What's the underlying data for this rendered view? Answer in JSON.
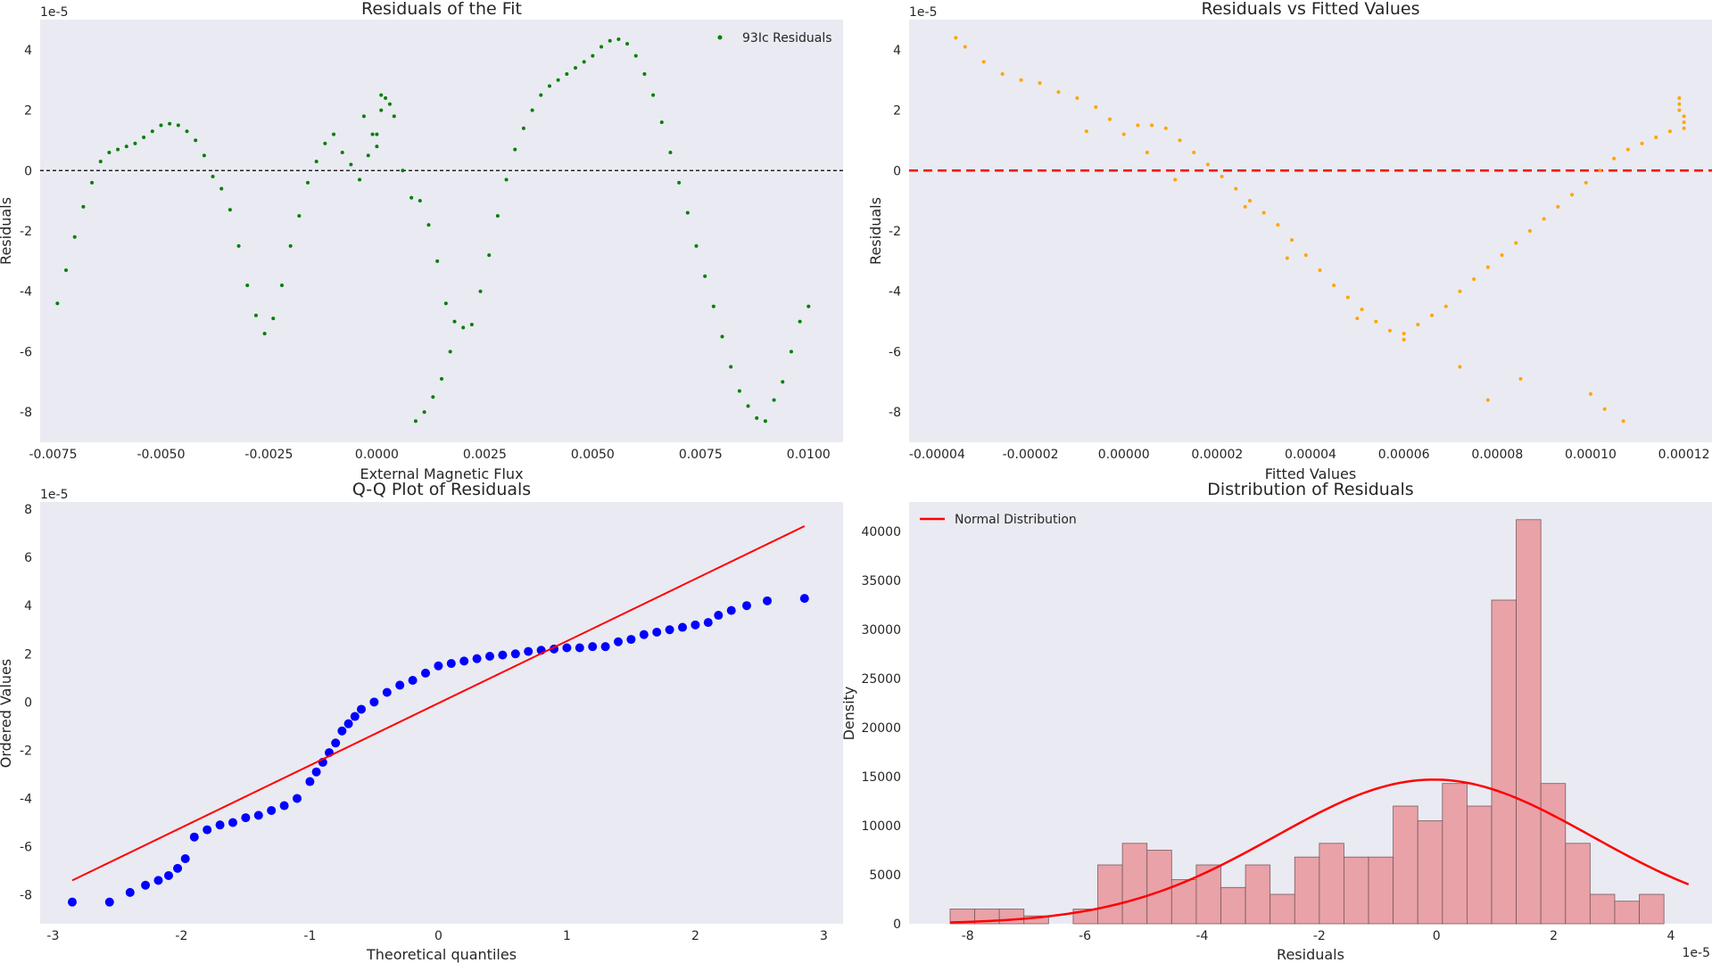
{
  "chart_data": [
    {
      "type": "scatter",
      "title": "Residuals of the Fit",
      "xlabel": "External Magnetic Flux",
      "ylabel": "Residuals",
      "offset_label": "1e-5",
      "xlim": [
        -0.0078,
        0.0108
      ],
      "ylim": [
        -9.0,
        5.0
      ],
      "xticks": [
        "-0.0075",
        "-0.0050",
        "-0.0025",
        "0.0000",
        "0.0025",
        "0.0050",
        "0.0075",
        "0.0100"
      ],
      "xtick_values": [
        -0.0075,
        -0.005,
        -0.0025,
        0,
        0.0025,
        0.005,
        0.0075,
        0.01
      ],
      "yticks": [
        "4",
        "2",
        "0",
        "-2",
        "-4",
        "-6",
        "-8"
      ],
      "ytick_values": [
        4,
        2,
        0,
        -2,
        -4,
        -6,
        -8
      ],
      "grid": false,
      "legend_position": "top-right",
      "series": [
        {
          "name": "93Ic Residuals",
          "color": "#008000",
          "x": [
            -0.0074,
            -0.0072,
            -0.007,
            -0.0068,
            -0.0066,
            -0.0064,
            -0.0062,
            -0.006,
            -0.0058,
            -0.0056,
            -0.0054,
            -0.0052,
            -0.005,
            -0.0048,
            -0.0046,
            -0.0044,
            -0.0042,
            -0.004,
            -0.0038,
            -0.0036,
            -0.0034,
            -0.0032,
            -0.003,
            -0.0028,
            -0.0026,
            -0.0024,
            -0.0022,
            -0.002,
            -0.0018,
            -0.0016,
            -0.0014,
            -0.0012,
            -0.001,
            -0.0008,
            -0.0006,
            -0.0004,
            -0.0002,
            0.0,
            0.0001,
            0.0002,
            0.0003,
            0.0004,
            0.0006,
            0.0008,
            0.001,
            0.0012,
            0.0014,
            0.0016,
            0.0018,
            0.002,
            0.0022,
            0.0024,
            0.0026,
            0.0028,
            0.003,
            0.0032,
            0.0034,
            0.0036,
            0.0038,
            0.004,
            0.0042,
            0.0044,
            0.0046,
            0.0048,
            0.005,
            0.0052,
            0.0054,
            0.0056,
            0.0058,
            0.006,
            0.0062,
            0.0064,
            0.0066,
            0.0068,
            0.007,
            0.0072,
            0.0074,
            0.0076,
            0.0078,
            0.008,
            0.0082,
            0.0084,
            0.0086,
            0.0088,
            0.009,
            0.0092,
            0.0094,
            0.0096,
            0.0098,
            0.01,
            0.0009,
            0.0011,
            0.0013,
            0.0015,
            0.0017,
            -0.0003,
            -0.0001,
            0.0,
            0.0001
          ],
          "y": [
            -4.4,
            -3.3,
            -2.2,
            -1.2,
            -0.4,
            0.3,
            0.6,
            0.7,
            0.8,
            0.9,
            1.1,
            1.3,
            1.5,
            1.55,
            1.5,
            1.3,
            1.0,
            0.5,
            -0.2,
            -0.6,
            -1.3,
            -2.5,
            -3.8,
            -4.8,
            -5.4,
            -4.9,
            -3.8,
            -2.5,
            -1.5,
            -0.4,
            0.3,
            0.9,
            1.2,
            0.6,
            0.2,
            -0.3,
            0.5,
            1.2,
            2.0,
            2.4,
            2.2,
            1.8,
            0.0,
            -0.9,
            -1.0,
            -1.8,
            -3.0,
            -4.4,
            -5.0,
            -5.2,
            -5.1,
            -4.0,
            -2.8,
            -1.5,
            -0.3,
            0.7,
            1.4,
            2.0,
            2.5,
            2.8,
            3.0,
            3.2,
            3.4,
            3.6,
            3.8,
            4.1,
            4.3,
            4.35,
            4.2,
            3.8,
            3.2,
            2.5,
            1.6,
            0.6,
            -0.4,
            -1.4,
            -2.5,
            -3.5,
            -4.5,
            -5.5,
            -6.5,
            -7.3,
            -7.8,
            -8.2,
            -8.3,
            -7.6,
            -7.0,
            -6.0,
            -5.0,
            -4.5,
            -8.3,
            -8.0,
            -7.5,
            -6.9,
            -6.0,
            1.8,
            1.2,
            0.8,
            2.5
          ]
        }
      ]
    },
    {
      "type": "scatter",
      "title": "Residuals vs Fitted Values",
      "xlabel": "Fitted Values",
      "ylabel": "Residuals",
      "offset_label": "1e-5",
      "xlim": [
        -4.6e-05,
        0.000126
      ],
      "ylim": [
        -9.0,
        5.0
      ],
      "xticks": [
        "-0.00004",
        "-0.00002",
        "0.00000",
        "0.00002",
        "0.00004",
        "0.00006",
        "0.00008",
        "0.00010",
        "0.00012"
      ],
      "xtick_values": [
        -4e-05,
        -2e-05,
        0,
        2e-05,
        4e-05,
        6e-05,
        8e-05,
        0.0001,
        0.00012
      ],
      "yticks": [
        "4",
        "2",
        "0",
        "-2",
        "-4",
        "-6",
        "-8"
      ],
      "ytick_values": [
        4,
        2,
        0,
        -2,
        -4,
        -6,
        -8
      ],
      "grid": false,
      "reference_line": {
        "y": 0,
        "color": "#ff0000",
        "style": "dashed"
      },
      "series": [
        {
          "color": "#ffa500",
          "x": [
            -3.6e-05,
            -3.4e-05,
            -3e-05,
            -2.6e-05,
            -2.2e-05,
            -1.8e-05,
            -1.4e-05,
            -1e-05,
            -6e-06,
            -3e-06,
            0.0,
            3e-06,
            6e-06,
            9e-06,
            1.2e-05,
            1.5e-05,
            1.8e-05,
            2.1e-05,
            2.4e-05,
            2.7e-05,
            3e-05,
            3.3e-05,
            3.6e-05,
            3.9e-05,
            4.2e-05,
            4.5e-05,
            4.8e-05,
            5.1e-05,
            5.4e-05,
            5.7e-05,
            6e-05,
            6.3e-05,
            6.6e-05,
            6.9e-05,
            7.2e-05,
            7.5e-05,
            7.8e-05,
            8.1e-05,
            8.4e-05,
            8.7e-05,
            9e-05,
            9.3e-05,
            9.6e-05,
            9.9e-05,
            0.000102,
            0.000105,
            0.000108,
            0.000111,
            0.000114,
            0.000117,
            0.000119,
            0.000119,
            0.000119,
            0.00012,
            0.00012,
            0.00012,
            7.2e-05,
            7.8e-05,
            8.5e-05,
            0.0001,
            0.000103,
            0.000107,
            2.6e-05,
            3.5e-05,
            -8e-06,
            5e-06,
            1.1e-05,
            6e-05,
            5e-05
          ],
          "y": [
            4.4,
            4.1,
            3.6,
            3.2,
            3.0,
            2.9,
            2.6,
            2.4,
            2.1,
            1.7,
            1.2,
            1.5,
            1.5,
            1.4,
            1.0,
            0.6,
            0.2,
            -0.2,
            -0.6,
            -1.0,
            -1.4,
            -1.8,
            -2.3,
            -2.8,
            -3.3,
            -3.8,
            -4.2,
            -4.6,
            -5.0,
            -5.3,
            -5.4,
            -5.1,
            -4.8,
            -4.5,
            -4.0,
            -3.6,
            -3.2,
            -2.8,
            -2.4,
            -2.0,
            -1.6,
            -1.2,
            -0.8,
            -0.4,
            0.0,
            0.4,
            0.7,
            0.9,
            1.1,
            1.3,
            2.4,
            2.2,
            2.0,
            1.8,
            1.6,
            1.4,
            -6.5,
            -7.6,
            -6.9,
            -7.4,
            -7.9,
            -8.3,
            -1.2,
            -2.9,
            1.3,
            0.6,
            -0.3,
            -5.6,
            -4.9
          ]
        }
      ]
    },
    {
      "type": "scatter",
      "title": "Q-Q Plot of Residuals",
      "xlabel": "Theoretical quantiles",
      "ylabel": "Ordered Values",
      "offset_label": "1e-5",
      "xlim": [
        -3.1,
        3.15
      ],
      "ylim": [
        -9.2,
        8.3
      ],
      "xticks": [
        "-3",
        "-2",
        "-1",
        "0",
        "1",
        "2",
        "3"
      ],
      "xtick_values": [
        -3,
        -2,
        -1,
        0,
        1,
        2,
        3
      ],
      "yticks": [
        "8",
        "6",
        "4",
        "2",
        "0",
        "-2",
        "-4",
        "-6",
        "-8"
      ],
      "ytick_values": [
        8,
        6,
        4,
        2,
        0,
        -2,
        -4,
        -6,
        -8
      ],
      "grid": false,
      "fit_line": {
        "x": [
          -2.85,
          2.85
        ],
        "y": [
          -7.4,
          7.3
        ],
        "color": "#ff0000"
      },
      "series": [
        {
          "color": "#0000ff",
          "x": [
            -2.85,
            -2.56,
            -2.4,
            -2.28,
            -2.18,
            -2.1,
            -2.03,
            -1.97,
            -1.9,
            -1.8,
            -1.7,
            -1.6,
            -1.5,
            -1.4,
            -1.3,
            -1.2,
            -1.1,
            -1.0,
            -0.95,
            -0.9,
            -0.85,
            -0.8,
            -0.75,
            -0.7,
            -0.65,
            -0.6,
            -0.5,
            -0.4,
            -0.3,
            -0.2,
            -0.1,
            0.0,
            0.1,
            0.2,
            0.3,
            0.4,
            0.5,
            0.6,
            0.7,
            0.8,
            0.9,
            1.0,
            1.1,
            1.2,
            1.3,
            1.4,
            1.5,
            1.6,
            1.7,
            1.8,
            1.9,
            2.0,
            2.1,
            2.18,
            2.28,
            2.4,
            2.56,
            2.85
          ],
          "y": [
            -8.3,
            -8.3,
            -7.9,
            -7.6,
            -7.4,
            -7.2,
            -6.9,
            -6.5,
            -5.6,
            -5.3,
            -5.1,
            -5.0,
            -4.8,
            -4.7,
            -4.5,
            -4.3,
            -4.0,
            -3.3,
            -2.9,
            -2.5,
            -2.1,
            -1.7,
            -1.2,
            -0.9,
            -0.6,
            -0.3,
            0.0,
            0.4,
            0.7,
            0.9,
            1.2,
            1.5,
            1.6,
            1.7,
            1.8,
            1.9,
            1.95,
            2.0,
            2.1,
            2.15,
            2.2,
            2.25,
            2.25,
            2.3,
            2.3,
            2.5,
            2.6,
            2.8,
            2.9,
            3.0,
            3.1,
            3.2,
            3.3,
            3.6,
            3.8,
            4.0,
            4.2,
            4.3
          ]
        }
      ]
    },
    {
      "type": "bar",
      "title": "Distribution of Residuals",
      "xlabel": "Residuals",
      "ylabel": "Density",
      "offset_label": "1e-5",
      "xlim": [
        -9.0,
        4.7
      ],
      "ylim": [
        0,
        43000
      ],
      "xticks": [
        "-8",
        "-6",
        "-4",
        "-2",
        "0",
        "2",
        "4"
      ],
      "xtick_values": [
        -8,
        -6,
        -4,
        -2,
        0,
        2,
        4
      ],
      "yticks": [
        "0",
        "5000",
        "10000",
        "15000",
        "20000",
        "25000",
        "30000",
        "35000",
        "40000"
      ],
      "ytick_values": [
        0,
        5000,
        10000,
        15000,
        20000,
        25000,
        30000,
        35000,
        40000
      ],
      "grid": false,
      "legend_position": "top-left",
      "histogram": {
        "color": "#e8959b",
        "bin_edges": [
          -8.3,
          -7.88,
          -7.46,
          -7.04,
          -6.62,
          -6.2,
          -5.78,
          -5.36,
          -4.94,
          -4.52,
          -4.1,
          -3.68,
          -3.26,
          -2.84,
          -2.42,
          -2.0,
          -1.58,
          -1.16,
          -0.74,
          -0.32,
          0.1,
          0.52,
          0.94,
          1.36,
          1.78,
          2.2,
          2.62,
          3.04,
          3.46,
          3.88,
          4.3
        ],
        "counts": [
          1500,
          1500,
          1500,
          800,
          0,
          1500,
          6000,
          8200,
          7500,
          4500,
          6000,
          3700,
          6000,
          3000,
          6800,
          8200,
          6800,
          6800,
          12000,
          10500,
          14300,
          12000,
          33000,
          41200,
          14300,
          8200,
          3000,
          2300,
          3000,
          0
        ]
      },
      "curve": {
        "name": "Normal Distribution",
        "color": "#ff0000",
        "mean": -0.05,
        "sd": 2.7,
        "peak": 14700,
        "x_range": [
          -8.3,
          4.3
        ]
      }
    }
  ]
}
